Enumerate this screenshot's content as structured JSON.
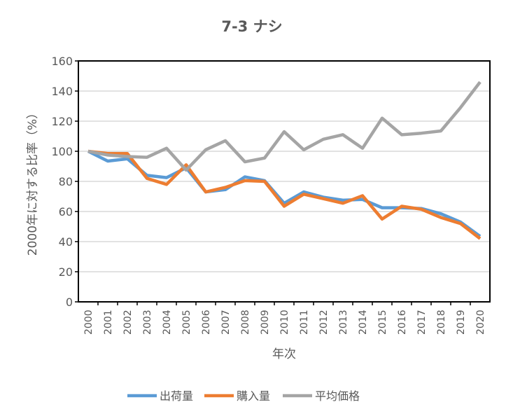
{
  "chart_data": {
    "type": "line",
    "title": "7-3  ナシ",
    "xlabel": "年次",
    "ylabel": "2000年に対する比率（%）",
    "ylim": [
      0,
      160
    ],
    "yticks": [
      0,
      20,
      40,
      60,
      80,
      100,
      120,
      140,
      160
    ],
    "grid": true,
    "legend": "bottom",
    "categories": [
      "2000",
      "2001",
      "2002",
      "2003",
      "2004",
      "2005",
      "2006",
      "2007",
      "2008",
      "2009",
      "2010",
      "2011",
      "2012",
      "2013",
      "2014",
      "2015",
      "2016",
      "2017",
      "2018",
      "2019",
      "2020"
    ],
    "series": [
      {
        "name": "出荷量",
        "color": "#5B9BD5",
        "values": [
          100,
          93.5,
          95,
          84,
          82.5,
          89,
          73,
          74.5,
          83,
          80.5,
          65.5,
          73,
          69.5,
          67.5,
          68,
          62.5,
          62.5,
          62,
          58.5,
          53,
          43.5
        ]
      },
      {
        "name": "購入量",
        "color": "#ED7D31",
        "values": [
          100,
          98.5,
          98.5,
          82,
          78,
          91,
          73,
          76,
          80.5,
          80,
          63.5,
          71.5,
          68.5,
          65.5,
          70.5,
          55,
          63.5,
          61.5,
          56,
          52,
          42
        ]
      },
      {
        "name": "平均価格",
        "color": "#A5A5A5",
        "values": [
          100,
          97.5,
          96.5,
          96,
          102,
          87.5,
          101,
          107,
          93,
          95.5,
          113,
          101,
          108,
          111,
          102,
          122,
          111,
          112,
          113.5,
          129,
          146
        ]
      }
    ]
  }
}
